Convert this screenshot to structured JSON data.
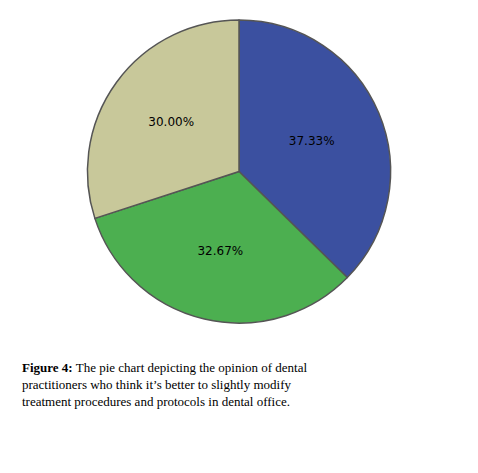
{
  "chart_data": {
    "type": "pie",
    "values": [
      37.33,
      32.67,
      30.0
    ],
    "value_labels": [
      "37.33%",
      "32.67%",
      "30.00%"
    ],
    "colors": [
      "#3b50a0",
      "#4caf50",
      "#c8c89a"
    ],
    "data_labels": true,
    "annotations": [
      "Figure 4:",
      "The pie chart depicting the opinion of dental practitioners who think it’s better to slightly modify treatment procedures and protocols in dental office."
    ]
  }
}
